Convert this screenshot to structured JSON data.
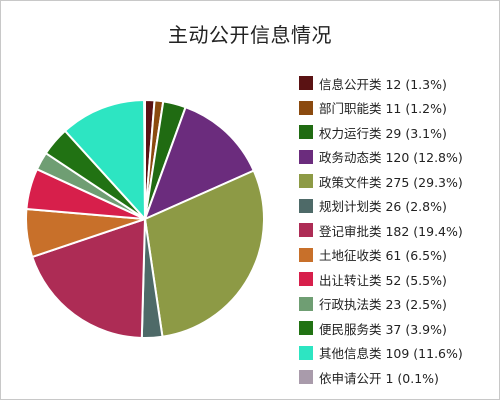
{
  "title": "主动公开信息情况",
  "chart_data": {
    "type": "pie",
    "title": "主动公开信息情况",
    "legend_position": "right",
    "slices": [
      {
        "label": "信息公开类 12 (1.3%)",
        "name": "信息公开类",
        "value": 12,
        "percent": 1.3,
        "color": "#5a1213"
      },
      {
        "label": "部门职能类 11 (1.2%)",
        "name": "部门职能类",
        "value": 11,
        "percent": 1.2,
        "color": "#8b4a0f"
      },
      {
        "label": "权力运行类 29 (3.1%)",
        "name": "权力运行类",
        "value": 29,
        "percent": 3.1,
        "color": "#206b12"
      },
      {
        "label": "政务动态类 120 (12.8%)",
        "name": "政务动态类",
        "value": 120,
        "percent": 12.8,
        "color": "#6b2c7d"
      },
      {
        "label": "政策文件类 275 (29.3%)",
        "name": "政策文件类",
        "value": 275,
        "percent": 29.3,
        "color": "#8d9a45"
      },
      {
        "label": "规划计划类 26 (2.8%)",
        "name": "规划计划类",
        "value": 26,
        "percent": 2.8,
        "color": "#4e6a68"
      },
      {
        "label": "登记审批类 182 (19.4%)",
        "name": "登记审批类",
        "value": 182,
        "percent": 19.4,
        "color": "#ad2c55"
      },
      {
        "label": "土地征收类 61 (6.5%)",
        "name": "土地征收类",
        "value": 61,
        "percent": 6.5,
        "color": "#c8702a"
      },
      {
        "label": "出让转让类 52 (5.5%)",
        "name": "出让转让类",
        "value": 52,
        "percent": 5.5,
        "color": "#d71f4b"
      },
      {
        "label": "行政执法类 23 (2.5%)",
        "name": "行政执法类",
        "value": 23,
        "percent": 2.5,
        "color": "#6f9e73"
      },
      {
        "label": "便民服务类 37 (3.9%)",
        "name": "便民服务类",
        "value": 37,
        "percent": 3.9,
        "color": "#217213"
      },
      {
        "label": "其他信息类 109 (11.6%)",
        "name": "其他信息类",
        "value": 109,
        "percent": 11.6,
        "color": "#2de5c2"
      },
      {
        "label": "依申请公开 1 (0.1%)",
        "name": "依申请公开",
        "value": 1,
        "percent": 0.1,
        "color": "#a99bab"
      }
    ]
  }
}
